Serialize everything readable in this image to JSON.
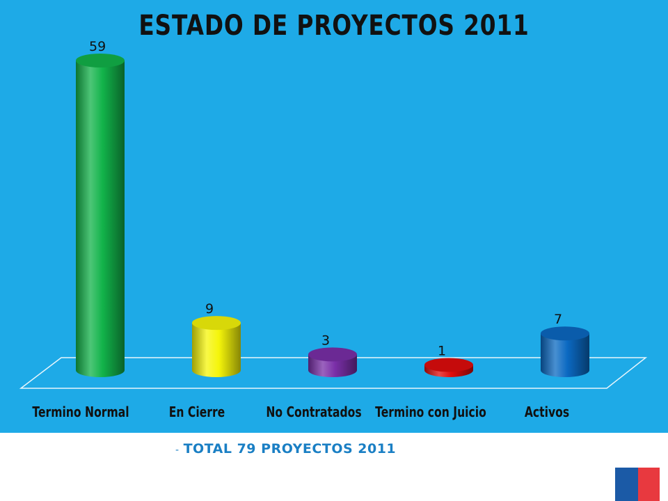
{
  "colors": {
    "background": "#1eaae7",
    "footer_text": "#1a7fc4",
    "flag_blue": "#1b5aa6",
    "flag_red": "#e8393f"
  },
  "footer": {
    "dash": "-",
    "text": "TOTAL 79 PROYECTOS 2011"
  },
  "chart_data": {
    "type": "bar",
    "style": "3d-cylinder",
    "title": "ESTADO DE PROYECTOS 2011",
    "xlabel": "",
    "ylabel": "",
    "categories": [
      "Termino Normal",
      "En Cierre",
      "No Contratados",
      "Termino con Juicio",
      "Activos"
    ],
    "values": [
      59,
      9,
      3,
      1,
      7
    ],
    "bar_colors": [
      "#12b34a",
      "#f5f50a",
      "#7a2fa8",
      "#e00c0c",
      "#0b69c2"
    ],
    "ylim": [
      0,
      60
    ],
    "grid": false,
    "legend": "none",
    "data_labels": true
  }
}
